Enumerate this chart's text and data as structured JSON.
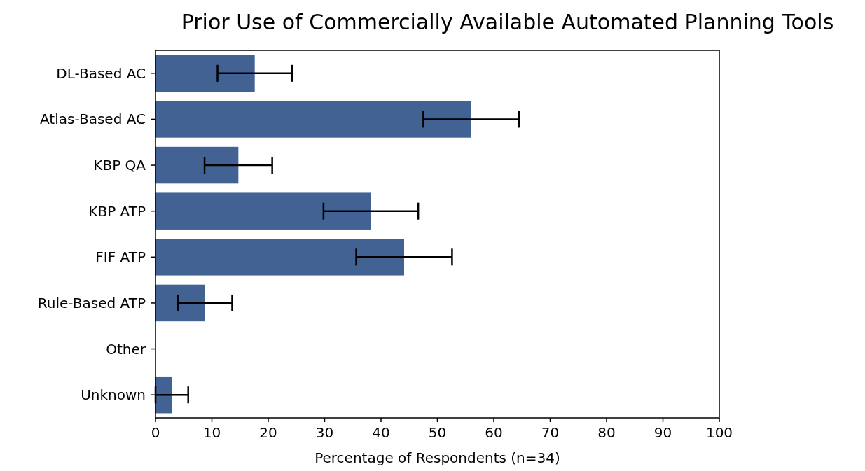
{
  "chart_data": {
    "type": "bar",
    "orientation": "horizontal",
    "title": "Prior Use of Commercially Available Automated Planning Tools",
    "xlabel": "Percentage of Respondents (n=34)",
    "categories": [
      "DL-Based AC",
      "Atlas-Based AC",
      "KBP QA",
      "KBP ATP",
      "FIF ATP",
      "Rule-Based ATP",
      "Other",
      "Unknown"
    ],
    "values": [
      17.6,
      56.0,
      14.7,
      38.2,
      44.1,
      8.8,
      0,
      2.9
    ],
    "errors": [
      6.6,
      8.5,
      6.0,
      8.4,
      8.5,
      4.8,
      null,
      2.9
    ],
    "color": "#426294",
    "xlim": [
      0,
      100
    ],
    "xticks": [
      0,
      10,
      20,
      30,
      40,
      50,
      60,
      70,
      80,
      90,
      100
    ],
    "grid": false
  }
}
